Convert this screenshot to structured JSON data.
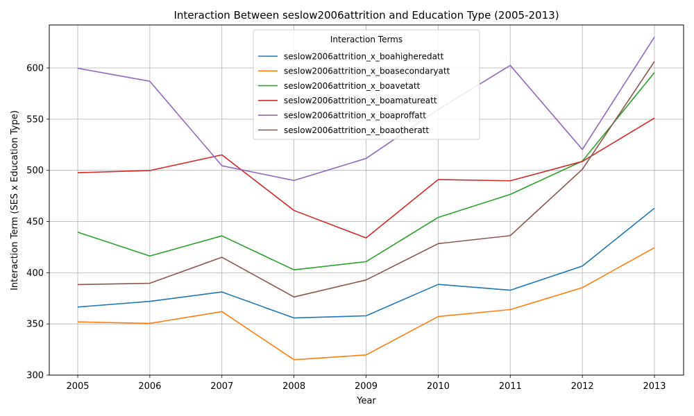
{
  "chart_data": {
    "type": "line",
    "title": "Interaction Between seslow2006attrition and Education Type (2005-2013)",
    "xlabel": "Year",
    "ylabel": "Interaction Term (SES x Education Type)",
    "x": [
      2005,
      2006,
      2007,
      2008,
      2009,
      2010,
      2011,
      2012,
      2013
    ],
    "ylim": [
      300,
      642
    ],
    "yticks": [
      300,
      350,
      400,
      450,
      500,
      550,
      600
    ],
    "grid": true,
    "legend": {
      "title": "Interaction Terms",
      "placement": "top-center"
    },
    "series": [
      {
        "name": "seslow2006attrition_x_boahigheredatt",
        "color": "#1f77b4",
        "values": [
          366.5,
          372.0,
          381.2,
          355.8,
          357.9,
          388.6,
          382.9,
          406.5,
          463.0
        ]
      },
      {
        "name": "seslow2006attrition_x_boasecondaryatt",
        "color": "#ff7f0e",
        "values": [
          352.0,
          350.5,
          362.0,
          315.0,
          319.7,
          357.2,
          364.0,
          385.4,
          424.5
        ]
      },
      {
        "name": "seslow2006attrition_x_boavetatt",
        "color": "#2ca02c",
        "values": [
          439.6,
          416.3,
          436.0,
          402.8,
          410.8,
          454.0,
          476.5,
          509.0,
          595.5
        ]
      },
      {
        "name": "seslow2006attrition_x_boamatureatt",
        "color": "#d62728",
        "values": [
          497.7,
          499.8,
          515.1,
          460.8,
          434.0,
          491.0,
          489.8,
          508.7,
          551.0
        ]
      },
      {
        "name": "seslow2006attrition_x_boaproffatt",
        "color": "#9467bd",
        "values": [
          599.7,
          587.0,
          504.5,
          490.1,
          511.6,
          559.4,
          602.5,
          520.4,
          630.2
        ]
      },
      {
        "name": "seslow2006attrition_x_boaotheratt",
        "color": "#8c564b",
        "values": [
          388.4,
          389.7,
          415.1,
          376.3,
          392.9,
          428.4,
          436.2,
          501.0,
          606.3
        ]
      }
    ]
  }
}
